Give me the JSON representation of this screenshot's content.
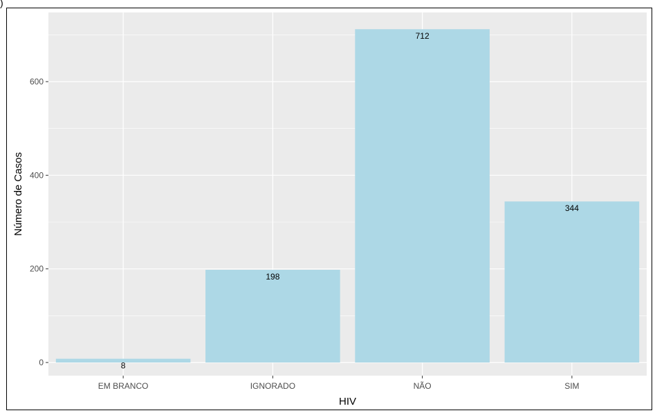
{
  "corner_label": ")",
  "colors": {
    "panel_background": "#ebebeb",
    "grid_major": "#ffffff",
    "bar_fill": "#add8e6",
    "tick_text": "#4d4d4d",
    "title_text": "#000000"
  },
  "chart_data": {
    "type": "bar",
    "xlabel": "HIV",
    "ylabel": "Número de Casos",
    "categories": [
      "EM BRANCO",
      "IGNORADO",
      "NÃO",
      "SIM"
    ],
    "values": [
      8,
      198,
      712,
      344
    ],
    "data_labels": [
      "8",
      "198",
      "712",
      "344"
    ],
    "ylim": [
      0,
      747
    ],
    "yticks": [
      0,
      200,
      400,
      600
    ],
    "ytick_labels": [
      "0",
      "200",
      "400",
      "600"
    ],
    "grid": true,
    "legend": "none"
  }
}
